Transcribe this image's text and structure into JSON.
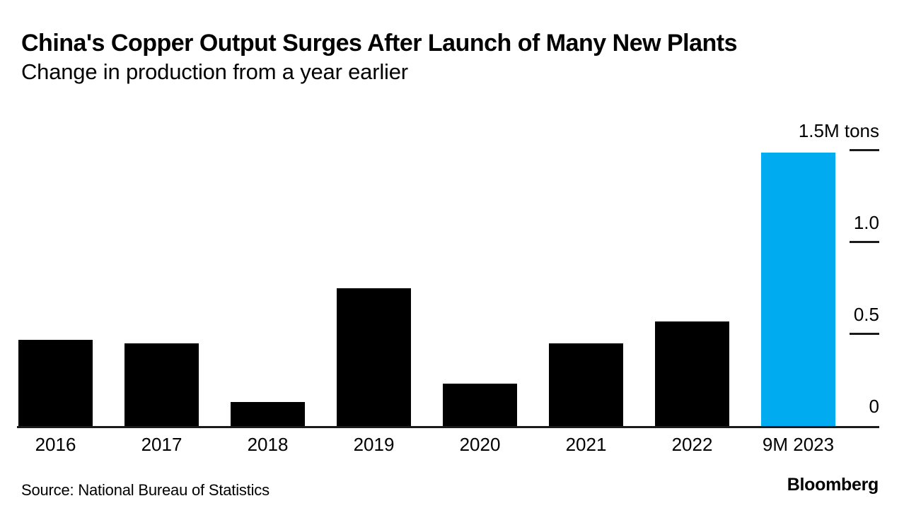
{
  "chart_data": {
    "type": "bar",
    "title": "China's Copper Output Surges After Launch of Many New Plants",
    "subtitle": "Change in production from a year earlier",
    "categories": [
      "2016",
      "2017",
      "2018",
      "2019",
      "2020",
      "2021",
      "2022",
      "9M 2023"
    ],
    "values": [
      0.47,
      0.45,
      0.13,
      0.75,
      0.23,
      0.45,
      0.57,
      1.49
    ],
    "unit": "million tons",
    "ylim": [
      0,
      1.5
    ],
    "yticks": [
      {
        "value": 0,
        "label": "0"
      },
      {
        "value": 0.5,
        "label": "0.5"
      },
      {
        "value": 1.0,
        "label": "1.0"
      },
      {
        "value": 1.5,
        "label": "1.5M tons"
      }
    ],
    "highlight_category": "9M 2023",
    "grid": false,
    "legend": "none",
    "axis_side": "right",
    "colors": {
      "bar": "#000000",
      "highlight": "#00abf0",
      "axis": "#1a1a1a",
      "text": "#000000"
    }
  },
  "footer": {
    "source": "Source: National Bureau of Statistics",
    "brand": "Bloomberg"
  }
}
